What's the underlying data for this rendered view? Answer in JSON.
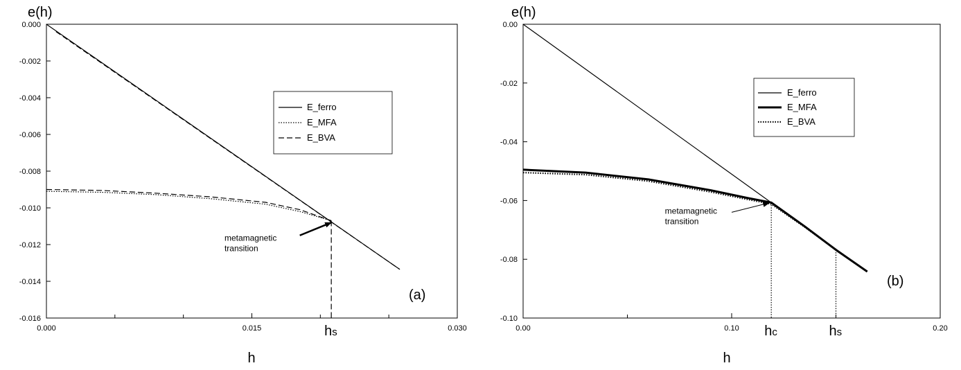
{
  "chart_data": [
    {
      "type": "line",
      "panel_label": "(a)",
      "ylabel": "e(h)",
      "xlabel": "h",
      "xlim": [
        0,
        0.03
      ],
      "ylim": [
        -0.016,
        0
      ],
      "x_ticks": [
        "0.000",
        "0.015",
        "0.030"
      ],
      "x_tick_values": [
        0,
        0.015,
        0.03
      ],
      "x_minor": [
        0.005,
        0.01,
        0.02,
        0.025
      ],
      "y_ticks": [
        "0.000",
        "-0.002",
        "-0.004",
        "-0.006",
        "-0.008",
        "-0.010",
        "-0.012",
        "-0.014",
        "-0.016"
      ],
      "y_tick_values": [
        0,
        -0.002,
        -0.004,
        -0.006,
        -0.008,
        -0.01,
        -0.012,
        -0.014,
        -0.016
      ],
      "legend": [
        "E_ferro",
        "E_MFA",
        "E_BVA"
      ],
      "legend_position": "upper-right",
      "series": [
        {
          "name": "E_ferro",
          "style": "solid",
          "width": 1.2,
          "x": [
            0,
            0.0258
          ],
          "y": [
            0,
            -0.01335
          ]
        },
        {
          "name": "E_MFA",
          "style": "dotted",
          "width": 1.2,
          "x": [
            0,
            0.004,
            0.008,
            0.012,
            0.016,
            0.0185,
            0.0208
          ],
          "y": [
            -0.0091,
            -0.00915,
            -0.00928,
            -0.0095,
            -0.0098,
            -0.0102,
            -0.0107
          ]
        },
        {
          "name": "E_BVA",
          "style": "dashed",
          "width": 1.2,
          "x": [
            0,
            0.004,
            0.008,
            0.012,
            0.016,
            0.0185,
            0.0208
          ],
          "y": [
            -0.009,
            -0.00905,
            -0.0092,
            -0.0094,
            -0.0097,
            -0.0101,
            -0.0107
          ]
        },
        {
          "name": "",
          "style": "dashed",
          "width": 1.2,
          "x": [
            0.0007,
            0.0258
          ],
          "y": [
            -0.0004,
            -0.01335
          ]
        }
      ],
      "vlines": [
        {
          "x": 0.0208,
          "y": -0.0107,
          "style": "dashed",
          "label": "hs"
        }
      ],
      "annotation": {
        "lines": [
          "metamagnetic",
          "transition"
        ],
        "text_at": [
          0.013,
          -0.0118
        ],
        "arrow_from": [
          0.0185,
          -0.0115
        ],
        "arrow_to": [
          0.0208,
          -0.0108
        ]
      }
    },
    {
      "type": "line",
      "panel_label": "(b)",
      "ylabel": "e(h)",
      "xlabel": "h",
      "xlim": [
        0,
        0.2
      ],
      "ylim": [
        -0.1,
        0
      ],
      "x_ticks": [
        "0.00",
        "0.10",
        "0.20"
      ],
      "x_tick_values": [
        0,
        0.1,
        0.2
      ],
      "x_minor": [
        0.05,
        0.15
      ],
      "y_ticks": [
        "0.00",
        "-0.02",
        "-0.04",
        "-0.06",
        "-0.08",
        "-0.10"
      ],
      "y_tick_values": [
        0,
        -0.02,
        -0.04,
        -0.06,
        -0.08,
        -0.1
      ],
      "legend": [
        "E_ferro",
        "E_MFA",
        "E_BVA"
      ],
      "legend_position": "upper-right",
      "series": [
        {
          "name": "E_ferro",
          "style": "solid",
          "width": 1.2,
          "x": [
            0,
            0.165
          ],
          "y": [
            0,
            -0.0842
          ]
        },
        {
          "name": "E_MFA",
          "style": "solid",
          "width": 3,
          "x": [
            0,
            0.03,
            0.06,
            0.09,
            0.108,
            0.119,
            0.135,
            0.15,
            0.165
          ],
          "y": [
            -0.0495,
            -0.0505,
            -0.0528,
            -0.0565,
            -0.0592,
            -0.0607,
            -0.0688,
            -0.0768,
            -0.0842
          ]
        },
        {
          "name": "E_BVA",
          "style": "dotted",
          "width": 2.2,
          "x": [
            0,
            0.03,
            0.06,
            0.09,
            0.108,
            0.119,
            0.135,
            0.15,
            0.165
          ],
          "y": [
            -0.0505,
            -0.0512,
            -0.0534,
            -0.0571,
            -0.0597,
            -0.0612,
            -0.069,
            -0.0768,
            -0.0842
          ]
        }
      ],
      "vlines": [
        {
          "x": 0.119,
          "y": -0.0607,
          "style": "dotted",
          "label": "hc"
        },
        {
          "x": 0.15,
          "y": -0.0768,
          "style": "dotted",
          "label": "hs"
        }
      ],
      "annotation": {
        "lines": [
          "metamagnetic",
          "transition"
        ],
        "text_at": [
          0.068,
          -0.0645
        ],
        "arrow_from": [
          0.1,
          -0.064
        ],
        "arrow_to": [
          0.118,
          -0.0608
        ]
      }
    }
  ]
}
